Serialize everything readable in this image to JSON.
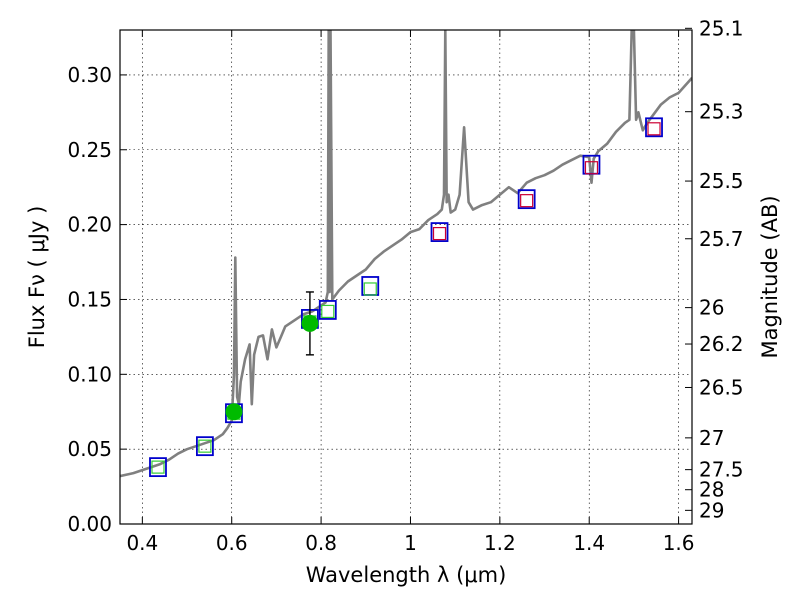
{
  "chart_data": {
    "type": "line",
    "xlabel": "Wavelength  λ (μm)",
    "ylabel": "Flux  Fν ( μJy )",
    "y2label": "Magnitude (AB)",
    "xlim": [
      0.35,
      1.63
    ],
    "ylim": [
      0.0,
      0.33
    ],
    "grid": true,
    "x_ticks": [
      0.4,
      0.6,
      0.8,
      1.0,
      1.2,
      1.4,
      1.6
    ],
    "x_tick_labels": [
      "0.4",
      "0.6",
      "0.8",
      "1",
      "1.2",
      "1.4",
      "1.6"
    ],
    "y_ticks": [
      0.0,
      0.05,
      0.1,
      0.15,
      0.2,
      0.25,
      0.3
    ],
    "y_tick_labels": [
      "0.00",
      "0.05",
      "0.10",
      "0.15",
      "0.20",
      "0.25",
      "0.30"
    ],
    "mag_ticks": [
      25.1,
      25.3,
      25.5,
      25.7,
      26,
      26.2,
      26.5,
      27,
      27.5,
      28,
      29
    ],
    "mag_tick_labels": [
      "25.1",
      "25.3",
      "25.5",
      "25.7",
      "26",
      "26.2",
      "26.5",
      "27",
      "27.5",
      "28",
      "29"
    ],
    "series": [
      {
        "style": "sed_line",
        "color": "#808080",
        "x": [
          0.35,
          0.38,
          0.4,
          0.42,
          0.44,
          0.46,
          0.48,
          0.5,
          0.52,
          0.54,
          0.56,
          0.58,
          0.59,
          0.6,
          0.605,
          0.608,
          0.612,
          0.616,
          0.62,
          0.63,
          0.64,
          0.645,
          0.65,
          0.66,
          0.67,
          0.68,
          0.69,
          0.7,
          0.71,
          0.72,
          0.74,
          0.76,
          0.78,
          0.8,
          0.81,
          0.815,
          0.817,
          0.819,
          0.821,
          0.825,
          0.83,
          0.84,
          0.86,
          0.88,
          0.9,
          0.92,
          0.94,
          0.96,
          0.98,
          1.0,
          1.02,
          1.04,
          1.06,
          1.07,
          1.075,
          1.078,
          1.081,
          1.085,
          1.09,
          1.1,
          1.11,
          1.12,
          1.13,
          1.14,
          1.16,
          1.18,
          1.2,
          1.22,
          1.24,
          1.26,
          1.28,
          1.3,
          1.32,
          1.34,
          1.36,
          1.38,
          1.4,
          1.405,
          1.41,
          1.42,
          1.44,
          1.46,
          1.48,
          1.49,
          1.495,
          1.5,
          1.505,
          1.51,
          1.52,
          1.53,
          1.54,
          1.56,
          1.58,
          1.6,
          1.63
        ],
        "y": [
          0.032,
          0.034,
          0.036,
          0.038,
          0.04,
          0.043,
          0.047,
          0.05,
          0.052,
          0.054,
          0.056,
          0.06,
          0.064,
          0.069,
          0.1,
          0.178,
          0.085,
          0.08,
          0.095,
          0.11,
          0.12,
          0.08,
          0.113,
          0.125,
          0.126,
          0.11,
          0.13,
          0.118,
          0.125,
          0.132,
          0.136,
          0.14,
          0.142,
          0.146,
          0.148,
          0.155,
          0.33,
          0.155,
          0.33,
          0.15,
          0.152,
          0.156,
          0.162,
          0.166,
          0.17,
          0.177,
          0.182,
          0.186,
          0.19,
          0.195,
          0.197,
          0.203,
          0.207,
          0.21,
          0.22,
          0.33,
          0.215,
          0.22,
          0.208,
          0.21,
          0.22,
          0.265,
          0.215,
          0.21,
          0.213,
          0.215,
          0.22,
          0.225,
          0.221,
          0.228,
          0.231,
          0.233,
          0.236,
          0.24,
          0.243,
          0.246,
          0.245,
          0.228,
          0.244,
          0.249,
          0.254,
          0.262,
          0.268,
          0.27,
          0.33,
          0.33,
          0.27,
          0.275,
          0.263,
          0.268,
          0.272,
          0.28,
          0.285,
          0.288,
          0.298
        ]
      },
      {
        "style": "blue_squares",
        "color": "#0000cc",
        "x": [
          0.435,
          0.54,
          0.605,
          0.775,
          0.815,
          0.91,
          1.065,
          1.26,
          1.405,
          1.545
        ],
        "y": [
          0.038,
          0.052,
          0.074,
          0.137,
          0.143,
          0.159,
          0.195,
          0.217,
          0.24,
          0.265
        ]
      },
      {
        "style": "green_open_squares",
        "color": "#33cc33",
        "x": [
          0.435,
          0.54,
          0.605,
          0.775,
          0.815,
          0.91
        ],
        "y": [
          0.038,
          0.052,
          0.074,
          0.135,
          0.142,
          0.157
        ]
      },
      {
        "style": "red_open_squares",
        "color": "#cc0033",
        "x": [
          1.065,
          1.26,
          1.405,
          1.545
        ],
        "y": [
          0.194,
          0.216,
          0.238,
          0.264
        ]
      },
      {
        "style": "green_filled_circles",
        "color": "#00bb00",
        "x": [
          0.605,
          0.775
        ],
        "y": [
          0.075,
          0.134
        ],
        "yerr_low": [
          0.071,
          0.113
        ],
        "yerr_high": [
          0.079,
          0.155
        ]
      }
    ]
  }
}
